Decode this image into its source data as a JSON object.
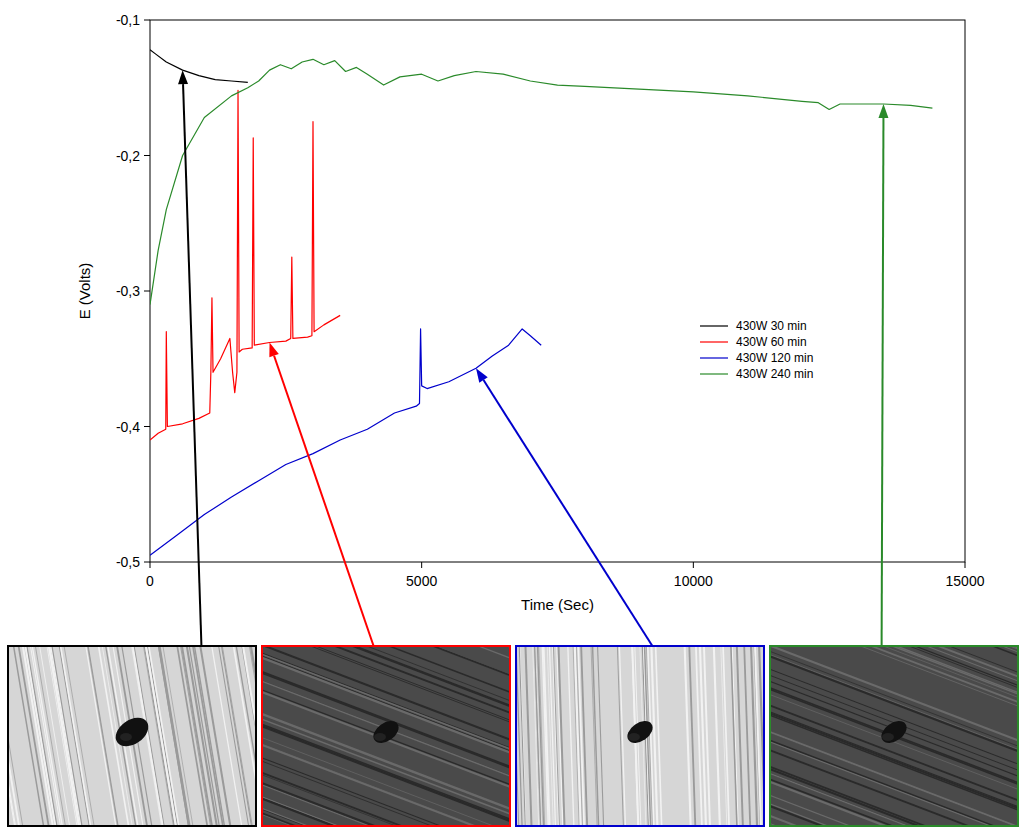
{
  "chart_data": {
    "type": "line",
    "x_label": "Time (Sec)",
    "y_label": "E (Volts)",
    "xlim": [
      0,
      15000
    ],
    "xticks": [
      0,
      5000,
      10000,
      15000
    ],
    "ylim": [
      -0.5,
      -0.1
    ],
    "yticks": [
      {
        "value": -0.5,
        "label": "-0,5"
      },
      {
        "value": -0.4,
        "label": "-0,4"
      },
      {
        "value": -0.3,
        "label": "-0,3"
      },
      {
        "value": -0.2,
        "label": "-0,2"
      },
      {
        "value": -0.1,
        "label": "-0,1"
      }
    ],
    "grid": false,
    "legend": "right",
    "series": [
      {
        "name": "430W 30 min",
        "color": "#000000",
        "x": [
          0,
          100,
          300,
          600,
          900,
          1200,
          1500,
          1800
        ],
        "values": [
          -0.122,
          -0.125,
          -0.131,
          -0.137,
          -0.141,
          -0.144,
          -0.145,
          -0.146
        ]
      },
      {
        "name": "430W 60 min",
        "color": "#ff0000",
        "x": [
          0,
          150,
          290,
          300,
          320,
          600,
          900,
          1100,
          1120,
          1140,
          1160,
          1300,
          1470,
          1520,
          1560,
          1600,
          1620,
          1640,
          1700,
          1880,
          1900,
          1920,
          2200,
          2500,
          2590,
          2610,
          2630,
          2900,
          2980,
          3000,
          3020,
          3200,
          3500
        ],
        "values": [
          -0.41,
          -0.405,
          -0.402,
          -0.33,
          -0.4,
          -0.398,
          -0.394,
          -0.39,
          -0.36,
          -0.305,
          -0.36,
          -0.35,
          -0.335,
          -0.36,
          -0.375,
          -0.36,
          -0.152,
          -0.345,
          -0.343,
          -0.342,
          -0.187,
          -0.34,
          -0.338,
          -0.337,
          -0.335,
          -0.275,
          -0.335,
          -0.334,
          -0.333,
          -0.175,
          -0.33,
          -0.325,
          -0.318
        ]
      },
      {
        "name": "430W 120 min",
        "color": "#0000cc",
        "x": [
          0,
          500,
          1000,
          1500,
          2000,
          2500,
          3000,
          3500,
          4000,
          4500,
          4900,
          4960,
          4980,
          5000,
          5100,
          5500,
          6000,
          6300,
          6600,
          6850,
          7000,
          7200
        ],
        "values": [
          -0.495,
          -0.48,
          -0.465,
          -0.452,
          -0.44,
          -0.428,
          -0.42,
          -0.41,
          -0.402,
          -0.39,
          -0.385,
          -0.383,
          -0.328,
          -0.37,
          -0.372,
          -0.367,
          -0.357,
          -0.348,
          -0.34,
          -0.328,
          -0.333,
          -0.34
        ]
      },
      {
        "name": "430W 240 min",
        "color": "#2a8a2a",
        "x": [
          0,
          150,
          300,
          600,
          1000,
          1500,
          1800,
          2000,
          2200,
          2400,
          2600,
          2800,
          3000,
          3200,
          3400,
          3600,
          3800,
          4000,
          4300,
          4600,
          5000,
          5300,
          5600,
          6000,
          6500,
          7000,
          7500,
          8000,
          9000,
          10000,
          11000,
          12000,
          12300,
          12500,
          12700,
          13000,
          13500,
          14000,
          14400
        ],
        "values": [
          -0.31,
          -0.27,
          -0.24,
          -0.2,
          -0.172,
          -0.156,
          -0.15,
          -0.145,
          -0.137,
          -0.133,
          -0.136,
          -0.131,
          -0.129,
          -0.133,
          -0.13,
          -0.138,
          -0.135,
          -0.14,
          -0.148,
          -0.142,
          -0.14,
          -0.145,
          -0.141,
          -0.138,
          -0.14,
          -0.145,
          -0.148,
          -0.149,
          -0.151,
          -0.153,
          -0.156,
          -0.16,
          -0.161,
          -0.166,
          -0.162,
          -0.162,
          -0.162,
          -0.163,
          -0.165
        ]
      }
    ]
  }
}
